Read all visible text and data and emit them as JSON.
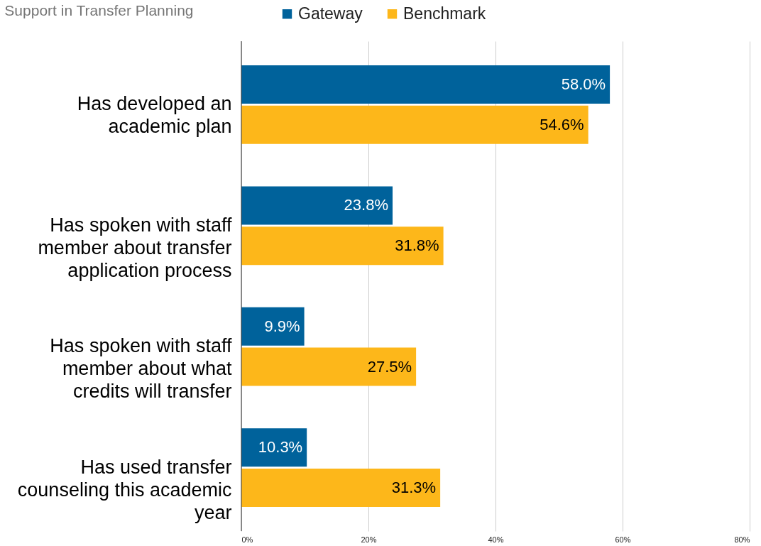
{
  "chart_data": {
    "type": "bar",
    "orientation": "horizontal",
    "title": "Support in Transfer Planning",
    "categories": [
      "Has developed an academic plan",
      "Has spoken with staff member about transfer application process",
      "Has spoken with staff member about what credits will transfer",
      "Has used transfer counseling this academic year"
    ],
    "series": [
      {
        "name": "Gateway",
        "color": "#00629b",
        "values": [
          58.0,
          23.8,
          9.9,
          10.3
        ],
        "value_labels": [
          "58.0%",
          "23.8%",
          "9.9%",
          "10.3%"
        ]
      },
      {
        "name": "Benchmark",
        "color": "#fdb71a",
        "values": [
          54.6,
          31.8,
          27.5,
          31.3
        ],
        "value_labels": [
          "54.6%",
          "31.8%",
          "27.5%",
          "31.3%"
        ]
      }
    ],
    "xlim": [
      0,
      80
    ],
    "xticks": [
      {
        "value": 0,
        "label": "0%"
      },
      {
        "value": 20,
        "label": "20%"
      },
      {
        "value": 40,
        "label": "40%"
      },
      {
        "value": 60,
        "label": "60%"
      },
      {
        "value": 80,
        "label": "80%"
      }
    ],
    "grid": "x",
    "legend": "top"
  }
}
